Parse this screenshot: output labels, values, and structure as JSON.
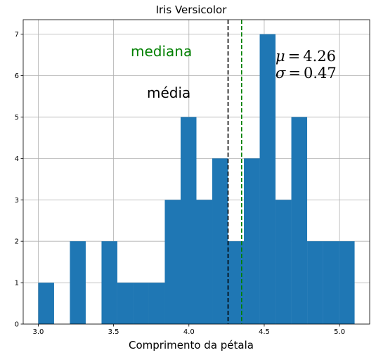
{
  "chart_data": {
    "type": "bar",
    "title": "Iris Versicolor",
    "xlabel": "Comprimento da pétala",
    "ylabel": "",
    "xlim": [
      2.9,
      5.2
    ],
    "ylim": [
      0,
      7.35
    ],
    "grid": true,
    "bar_color": "#1f77b4",
    "bin_width": 0.105,
    "bins": [
      {
        "x0": 3.0,
        "count": 1
      },
      {
        "x0": 3.105,
        "count": 0
      },
      {
        "x0": 3.21,
        "count": 2
      },
      {
        "x0": 3.315,
        "count": 0
      },
      {
        "x0": 3.42,
        "count": 2
      },
      {
        "x0": 3.525,
        "count": 1
      },
      {
        "x0": 3.63,
        "count": 1
      },
      {
        "x0": 3.735,
        "count": 1
      },
      {
        "x0": 3.84,
        "count": 3
      },
      {
        "x0": 3.945,
        "count": 5
      },
      {
        "x0": 4.05,
        "count": 3
      },
      {
        "x0": 4.155,
        "count": 4
      },
      {
        "x0": 4.26,
        "count": 2
      },
      {
        "x0": 4.365,
        "count": 4
      },
      {
        "x0": 4.47,
        "count": 7
      },
      {
        "x0": 4.575,
        "count": 3
      },
      {
        "x0": 4.68,
        "count": 5
      },
      {
        "x0": 4.785,
        "count": 2
      },
      {
        "x0": 4.89,
        "count": 2
      },
      {
        "x0": 4.995,
        "count": 2
      }
    ],
    "x_ticks": [
      {
        "value": 3.0,
        "label": "3.0"
      },
      {
        "value": 3.5,
        "label": "3.5"
      },
      {
        "value": 4.0,
        "label": "4.0"
      },
      {
        "value": 4.5,
        "label": "4.5"
      },
      {
        "value": 5.0,
        "label": "5.0"
      }
    ],
    "y_ticks": [
      {
        "value": 0,
        "label": "0"
      },
      {
        "value": 1,
        "label": "1"
      },
      {
        "value": 2,
        "label": "2"
      },
      {
        "value": 3,
        "label": "3"
      },
      {
        "value": 4,
        "label": "4"
      },
      {
        "value": 5,
        "label": "5"
      },
      {
        "value": 6,
        "label": "6"
      },
      {
        "value": 7,
        "label": "7"
      }
    ],
    "lines": [
      {
        "name": "media",
        "x": 4.26,
        "color": "#000000",
        "style": "dashed"
      },
      {
        "name": "mediana",
        "x": 4.35,
        "color": "#008000",
        "style": "dashed"
      }
    ],
    "annotations": {
      "mediana_label": {
        "text": "mediana",
        "color": "#008000"
      },
      "media_label": {
        "text": "média",
        "color": "#000000"
      },
      "mu": {
        "symbol": "μ",
        "value": "4.26"
      },
      "sigma": {
        "symbol": "σ",
        "value": "0.47"
      }
    }
  }
}
